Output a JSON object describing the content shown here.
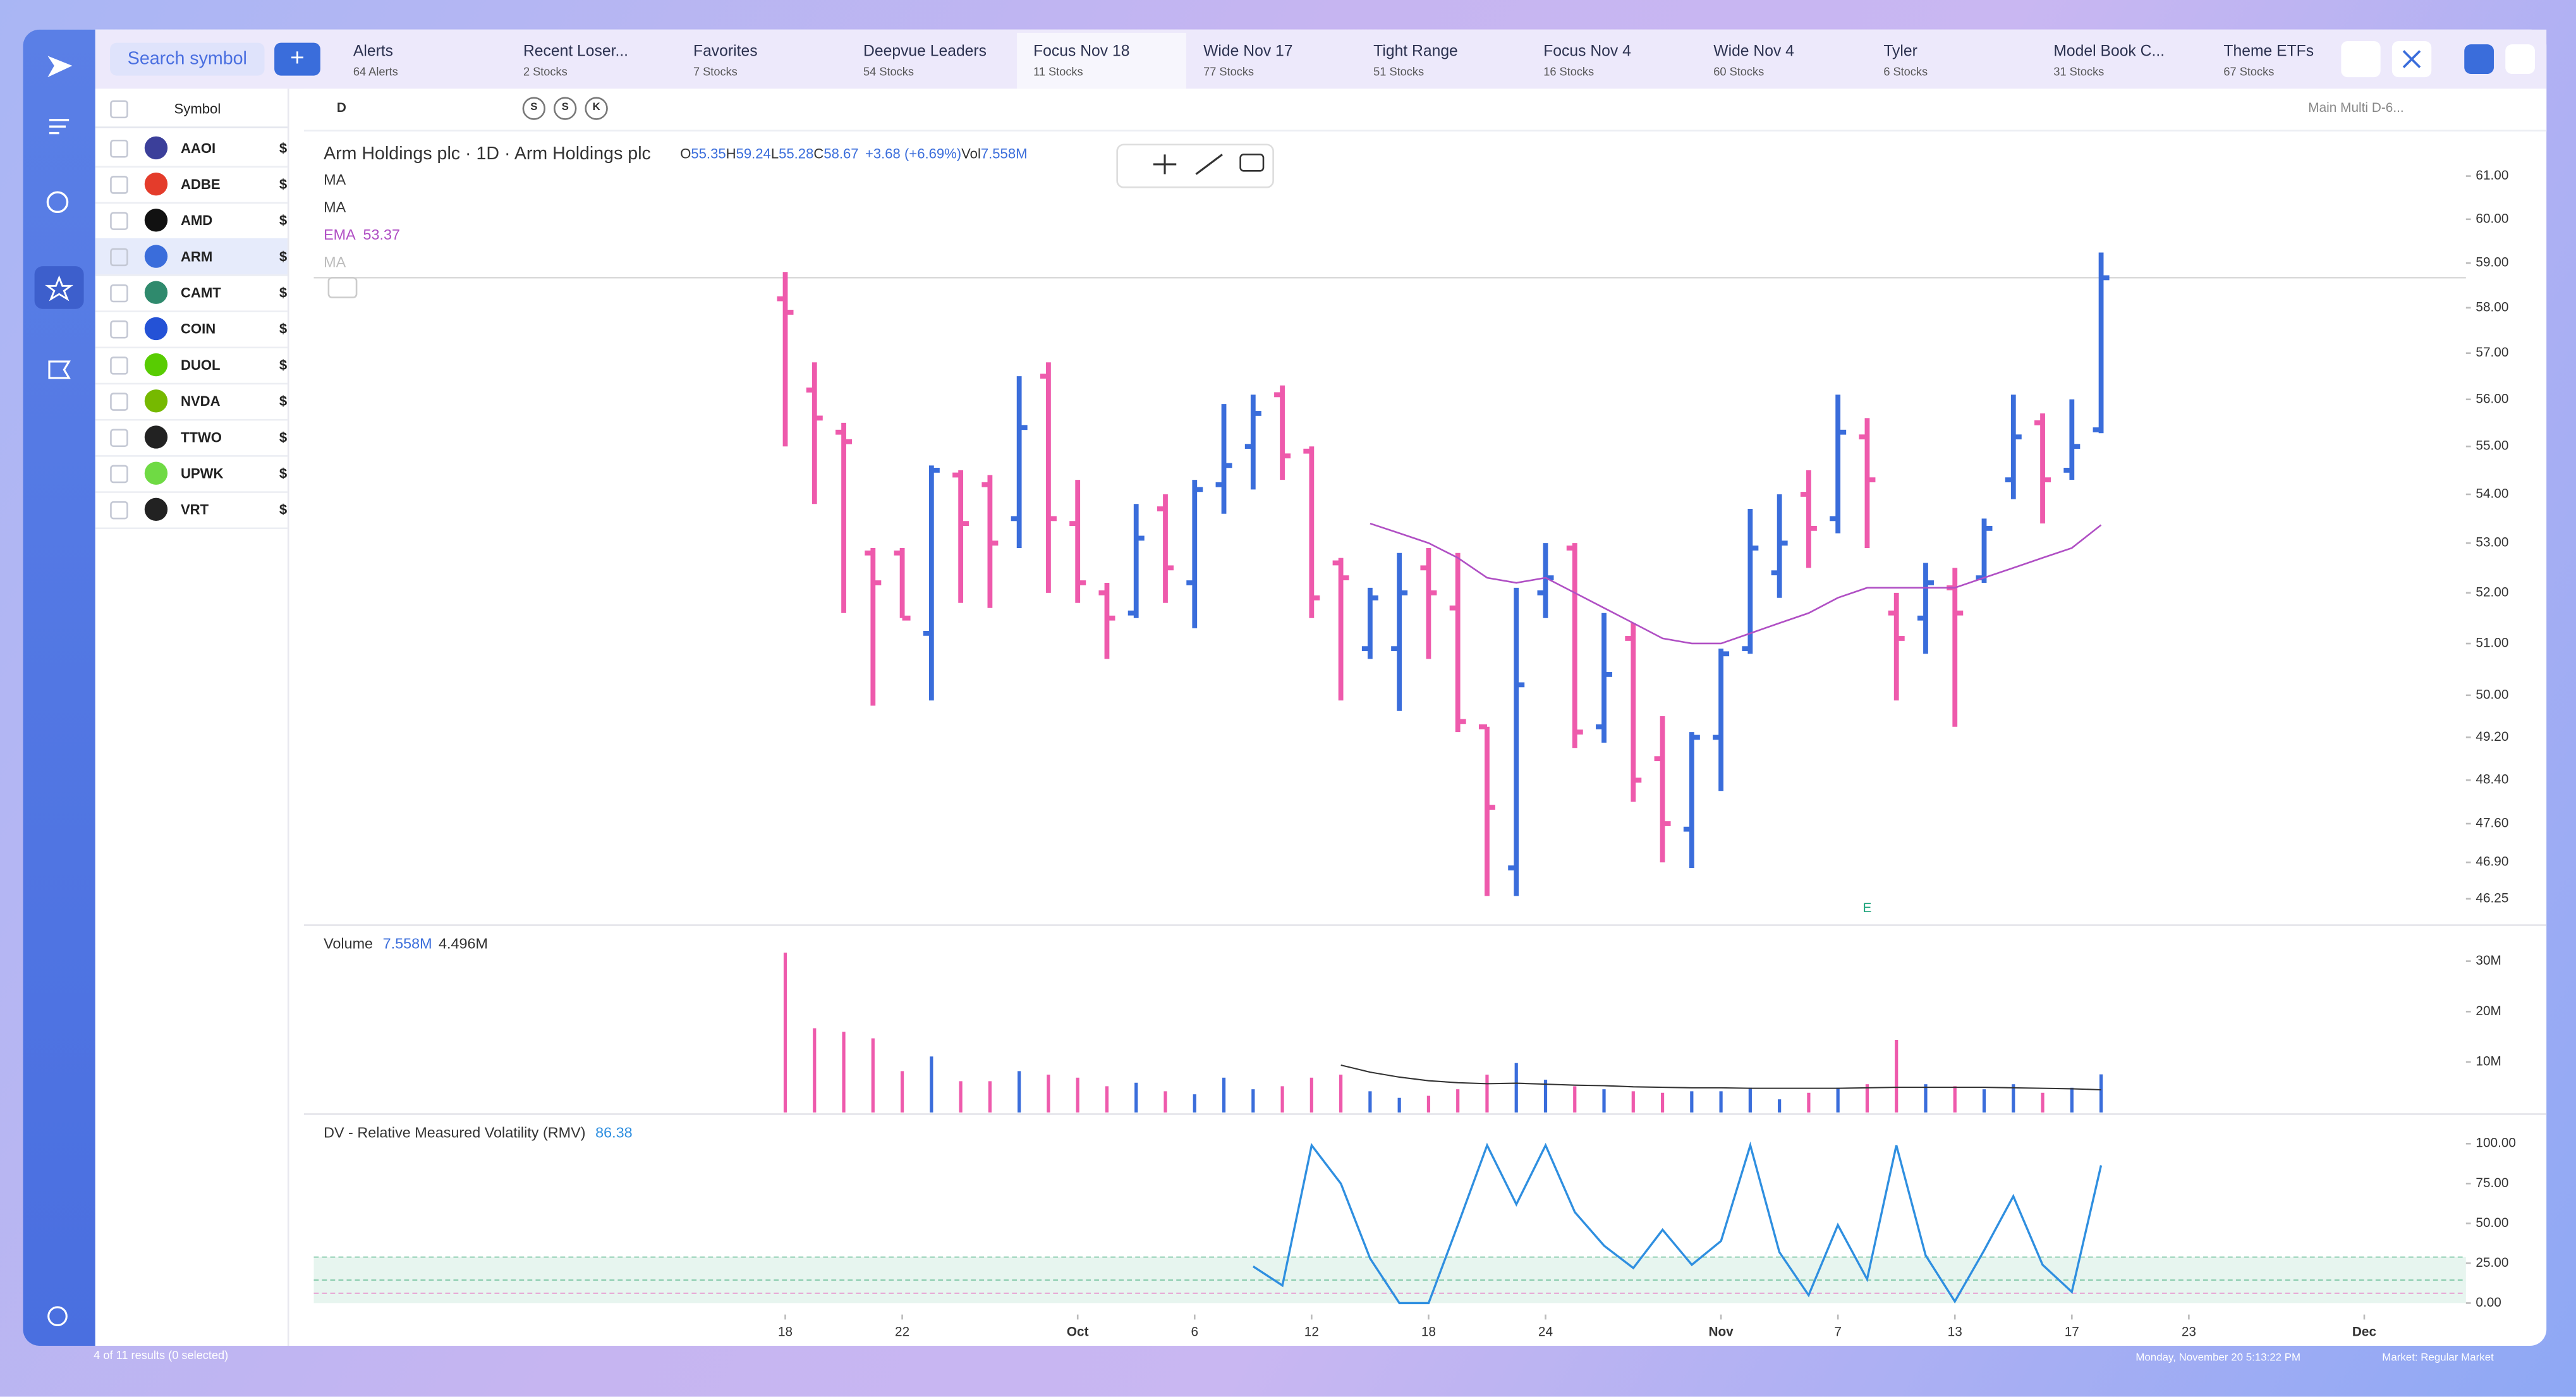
{
  "search_placeholder": "Search symbol",
  "tabs": [
    {
      "title": "Alerts",
      "count": "64 Alerts"
    },
    {
      "title": "Recent Loser...",
      "count": "2 Stocks"
    },
    {
      "title": "Favorites",
      "count": "7 Stocks"
    },
    {
      "title": "Deepvue Leaders",
      "count": "54 Stocks"
    },
    {
      "title": "Focus Nov 18",
      "count": "11 Stocks"
    },
    {
      "title": "Wide Nov 17",
      "count": "77 Stocks"
    },
    {
      "title": "Tight Range",
      "count": "51 Stocks"
    },
    {
      "title": "Focus Nov 4",
      "count": "16 Stocks"
    },
    {
      "title": "Wide Nov 4",
      "count": "60 Stocks"
    },
    {
      "title": "Tyler",
      "count": "6 Stocks"
    },
    {
      "title": "Model Book C...",
      "count": "31 Stocks"
    },
    {
      "title": "Theme ETFs",
      "count": "67 Stocks"
    }
  ],
  "watchlist": {
    "header": "Symbol",
    "rows": [
      {
        "symbol": "AAOI",
        "price": "$"
      },
      {
        "symbol": "ADBE",
        "price": "$"
      },
      {
        "symbol": "AMD",
        "price": "$"
      },
      {
        "symbol": "ARM",
        "price": "$"
      },
      {
        "symbol": "CAMT",
        "price": "$"
      },
      {
        "symbol": "COIN",
        "price": "$"
      },
      {
        "symbol": "DUOL",
        "price": "$"
      },
      {
        "symbol": "NVDA",
        "price": "$"
      },
      {
        "symbol": "TTWO",
        "price": "$"
      },
      {
        "symbol": "UPWK",
        "price": "$"
      },
      {
        "symbol": "VRT",
        "price": "$"
      }
    ],
    "footer": "4 of 11 results (0 selected)"
  },
  "toolbar": {
    "interval": "D",
    "buttons": [
      "S",
      "S",
      "K"
    ],
    "layout": "Main Multi D-6..."
  },
  "status": {
    "datetime": "Monday, November 20  5:13:22  PM",
    "market": "Market: Regular Market"
  },
  "chart_data": {
    "type": "ohlc",
    "title": "Arm Holdings plc · 1D · Arm Holdings plc",
    "legend_keys": [
      "O",
      "H",
      "L",
      "C",
      "Vol"
    ],
    "change": "+3.68 (+6.69%)",
    "indicators": [
      {
        "name": "MA"
      },
      {
        "name": "MA"
      },
      {
        "name": "EMA"
      },
      {
        "name": "MA"
      }
    ],
    "annotations": [
      {
        "x": 37,
        "label": "E"
      }
    ],
    "log_scale": true,
    "up_color": "#3a6ddb",
    "down_color": "#ee5aac",
    "xlim": [
      -16.18,
      57.42
    ],
    "xticks": [
      {
        "value": 0,
        "label": "18"
      },
      {
        "value": 4,
        "label": "22"
      },
      {
        "value": 10,
        "label": "Oct"
      },
      {
        "value": 14,
        "label": "6"
      },
      {
        "value": 18,
        "label": "12"
      },
      {
        "value": 22,
        "label": "18"
      },
      {
        "value": 26,
        "label": "24"
      },
      {
        "value": 32,
        "label": "Nov"
      },
      {
        "value": 36,
        "label": "7"
      },
      {
        "value": 40,
        "label": "13"
      },
      {
        "value": 44,
        "label": "17"
      },
      {
        "value": 48,
        "label": "23"
      },
      {
        "value": 54,
        "label": "Dec"
      }
    ],
    "ylim": [
      45.93,
      61.74
    ],
    "yticks": [
      {
        "value": 61,
        "label": "61.00"
      },
      {
        "value": 60,
        "label": "60.00"
      },
      {
        "value": 59,
        "label": "59.00"
      },
      {
        "value": 58,
        "label": "58.00"
      },
      {
        "value": 57,
        "label": "57.00"
      },
      {
        "value": 56,
        "label": "56.00"
      },
      {
        "value": 55,
        "label": "55.00"
      },
      {
        "value": 54,
        "label": "54.00"
      },
      {
        "value": 53,
        "label": "53.00"
      },
      {
        "value": 52,
        "label": "52.00"
      },
      {
        "value": 51,
        "label": "51.00"
      },
      {
        "value": 50,
        "label": "50.00"
      },
      {
        "value": 49.2,
        "label": "49.20"
      },
      {
        "value": 48.4,
        "label": "48.40"
      },
      {
        "value": 47.6,
        "label": "47.60"
      },
      {
        "value": 46.9,
        "label": "46.90"
      },
      {
        "value": 46.25,
        "label": "46.25"
      }
    ],
    "open": [
      58.2,
      56.2,
      55.3,
      52.8,
      52.8,
      51.2,
      54.4,
      54.2,
      53.5,
      56.5,
      53.4,
      52.0,
      51.6,
      53.7,
      52.2,
      54.2,
      55.0,
      56.1,
      54.9,
      52.6,
      50.9,
      50.9,
      52.5,
      51.7,
      49.4,
      46.8,
      52.0,
      52.9,
      49.4,
      51.1,
      48.8,
      47.5,
      49.2,
      50.9,
      52.4,
      54.0,
      53.5,
      55.2,
      51.6,
      51.5,
      52.1,
      52.3,
      54.3,
      55.5,
      54.5,
      55.35
    ],
    "high": [
      58.8,
      56.8,
      55.5,
      52.9,
      52.9,
      54.6,
      54.5,
      54.4,
      56.5,
      56.8,
      54.3,
      52.2,
      53.8,
      54.0,
      54.3,
      55.9,
      56.1,
      56.3,
      55.0,
      52.7,
      52.1,
      52.8,
      52.9,
      52.8,
      49.4,
      52.1,
      53.0,
      53.0,
      51.6,
      51.4,
      49.6,
      49.3,
      50.9,
      53.7,
      54.0,
      54.5,
      56.1,
      55.6,
      52.0,
      52.6,
      52.5,
      53.5,
      56.1,
      55.7,
      56.0,
      59.24
    ],
    "low": [
      55.0,
      53.8,
      51.6,
      49.8,
      51.5,
      49.9,
      51.8,
      51.7,
      52.9,
      52.0,
      51.8,
      50.7,
      51.5,
      51.8,
      51.3,
      53.6,
      54.1,
      54.3,
      51.5,
      49.9,
      50.7,
      49.7,
      50.7,
      49.3,
      46.3,
      46.3,
      51.5,
      49.0,
      49.1,
      48.0,
      46.9,
      46.8,
      48.2,
      50.8,
      51.9,
      52.5,
      53.2,
      52.9,
      49.9,
      50.8,
      49.4,
      52.2,
      53.9,
      53.4,
      54.3,
      55.28
    ],
    "close": [
      57.9,
      55.6,
      55.1,
      52.2,
      51.5,
      54.5,
      53.4,
      53.0,
      55.4,
      53.5,
      52.2,
      51.5,
      53.1,
      52.5,
      54.1,
      54.6,
      55.7,
      54.8,
      51.9,
      52.3,
      51.9,
      52.0,
      52.0,
      49.5,
      47.9,
      50.2,
      52.3,
      49.3,
      50.4,
      48.4,
      47.6,
      49.2,
      50.8,
      52.9,
      53.0,
      53.3,
      55.3,
      54.3,
      51.1,
      52.2,
      51.6,
      53.3,
      55.2,
      54.3,
      55.0,
      58.67
    ],
    "ema": {
      "color": "#b04fc4",
      "values": [
        null,
        null,
        null,
        null,
        null,
        null,
        null,
        null,
        null,
        null,
        null,
        null,
        null,
        null,
        null,
        null,
        null,
        null,
        null,
        null,
        53.4,
        53.2,
        53.0,
        52.7,
        52.3,
        52.2,
        52.3,
        52.0,
        51.7,
        51.4,
        51.1,
        51.0,
        51.0,
        51.2,
        51.4,
        51.6,
        51.9,
        52.1,
        52.1,
        52.1,
        52.1,
        52.3,
        52.5,
        52.7,
        52.9,
        53.37
      ]
    },
    "volume": {
      "name": "Volume",
      "ylim": [
        0,
        36.5
      ],
      "yticks": [
        {
          "value": 30,
          "label": "30M"
        },
        {
          "value": 20,
          "label": "20M"
        },
        {
          "value": 10,
          "label": "10M"
        }
      ],
      "values": [
        31.7,
        16.7,
        16.0,
        14.7,
        8.2,
        11.1,
        6.2,
        6.2,
        8.2,
        7.5,
        6.9,
        5.2,
        5.9,
        4.2,
        3.6,
        6.9,
        4.6,
        5.2,
        6.9,
        7.5,
        4.2,
        2.9,
        3.3,
        4.6,
        7.5,
        9.8,
        6.5,
        5.2,
        4.6,
        4.2,
        3.9,
        4.2,
        4.2,
        4.9,
        2.6,
        3.9,
        4.9,
        5.6,
        14.4,
        5.6,
        5.2,
        4.6,
        5.6,
        3.9,
        4.9,
        7.558
      ],
      "value_labels": [
        null,
        null,
        null,
        null,
        null,
        null,
        null,
        null,
        null,
        null,
        null,
        null,
        null,
        null,
        null,
        null,
        null,
        null,
        null,
        null,
        null,
        null,
        null,
        null,
        null,
        null,
        null,
        null,
        null,
        null,
        null,
        null,
        null,
        null,
        null,
        null,
        null,
        null,
        null,
        null,
        null,
        null,
        null,
        null,
        null,
        "7.558M"
      ],
      "ma": {
        "color": "#333333",
        "values": [
          null,
          null,
          null,
          null,
          null,
          null,
          null,
          null,
          null,
          null,
          null,
          null,
          null,
          null,
          null,
          null,
          null,
          null,
          null,
          9.4,
          8.0,
          7.0,
          6.3,
          5.9,
          5.7,
          5.8,
          5.6,
          5.4,
          5.3,
          5.1,
          5.0,
          4.9,
          4.9,
          4.8,
          4.8,
          4.8,
          4.8,
          4.9,
          5.0,
          5.0,
          5.0,
          5.0,
          4.9,
          4.8,
          4.7,
          4.496
        ],
        "value_labels": [
          null,
          null,
          null,
          null,
          null,
          null,
          null,
          null,
          null,
          null,
          null,
          null,
          null,
          null,
          null,
          null,
          null,
          null,
          null,
          null,
          null,
          null,
          null,
          null,
          null,
          null,
          null,
          null,
          null,
          null,
          null,
          null,
          null,
          null,
          null,
          null,
          null,
          null,
          null,
          null,
          null,
          null,
          null,
          null,
          null,
          "4.496M"
        ]
      }
    },
    "rmv": {
      "name": "DV - Relative Measured Volatility (RMV)",
      "color": "#2f8fe0",
      "ylim": [
        -7.2,
        116.5
      ],
      "yticks": [
        {
          "value": 100,
          "label": "100.00"
        },
        {
          "value": 75,
          "label": "75.00"
        },
        {
          "value": 50,
          "label": "50.00"
        },
        {
          "value": 25,
          "label": "25.00"
        },
        {
          "value": 0,
          "label": "0.00"
        }
      ],
      "values": [
        null,
        null,
        null,
        null,
        null,
        null,
        null,
        null,
        null,
        null,
        null,
        null,
        null,
        null,
        null,
        null,
        23,
        11,
        99,
        75,
        28,
        0,
        0,
        49,
        99,
        62,
        99,
        57,
        36,
        22,
        46,
        24,
        39,
        99,
        32,
        5,
        49,
        15,
        99,
        30,
        1,
        33,
        67,
        24,
        7,
        86.38
      ]
    }
  }
}
